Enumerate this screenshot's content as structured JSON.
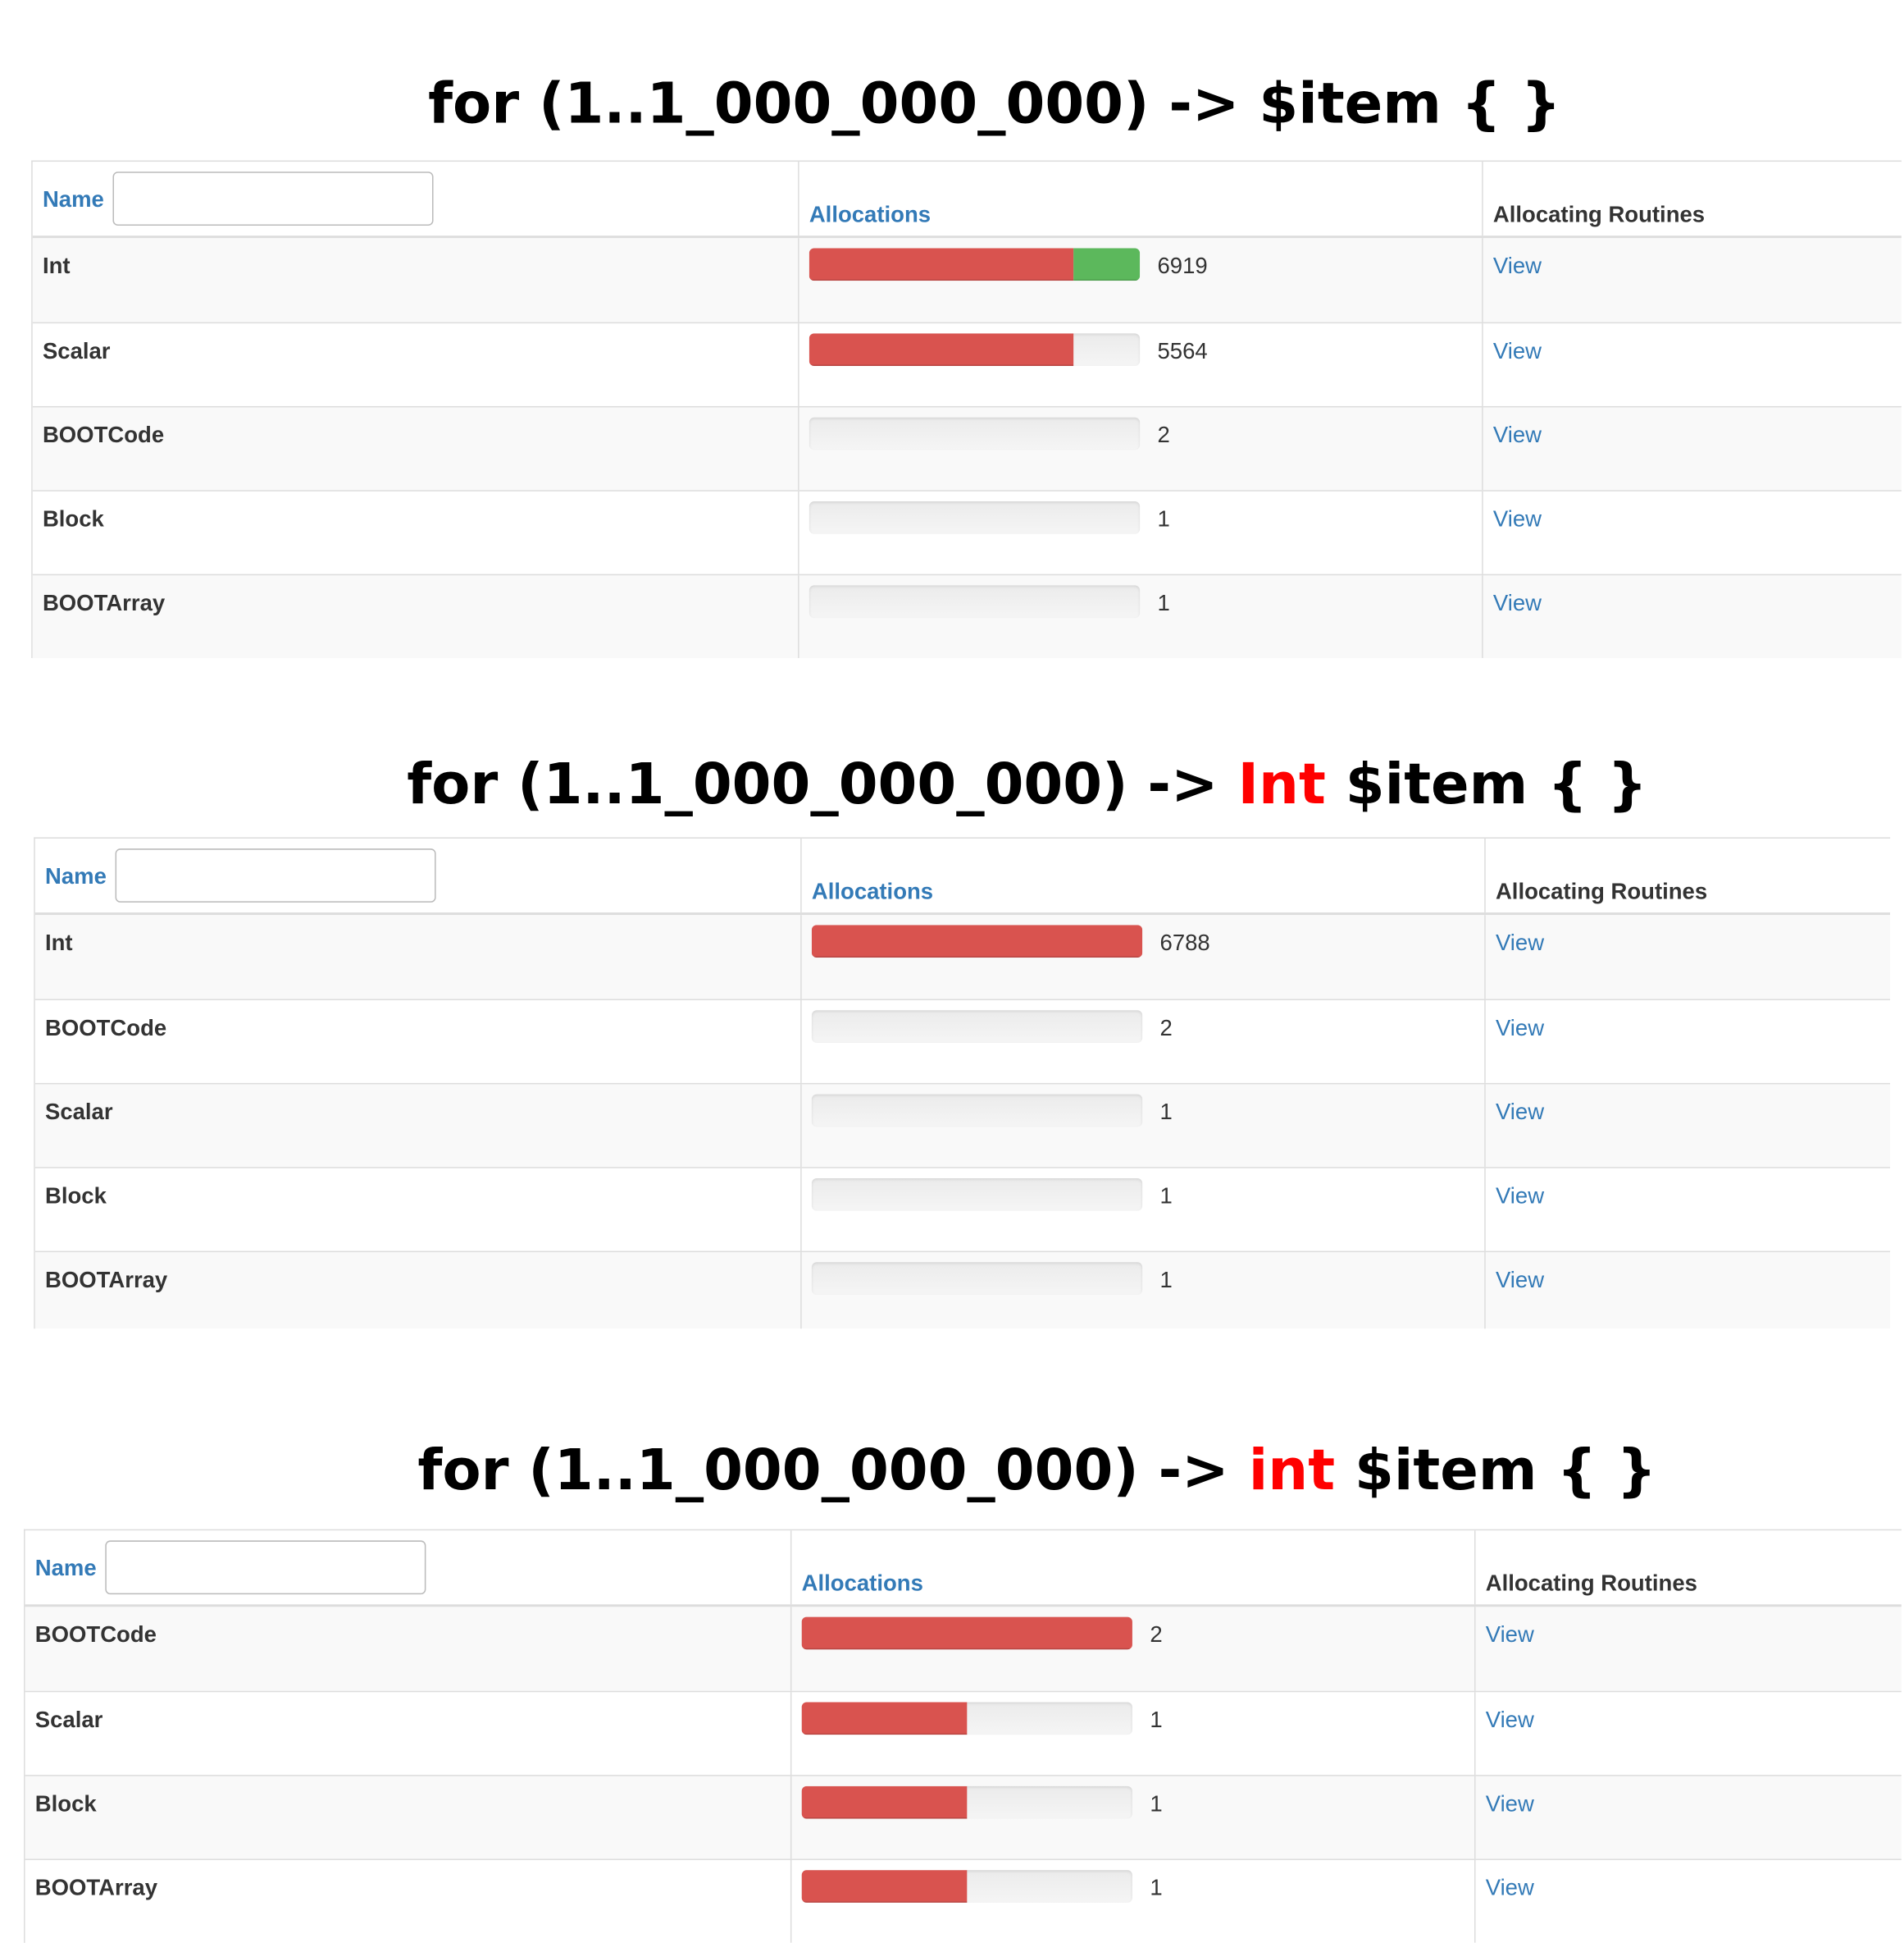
{
  "sections": [
    {
      "title": [
        {
          "text": "for (1..1_000_000_000) -> $item { }"
        }
      ],
      "table": {
        "headers": [
          "Name",
          "Allocations",
          "Allocating Routines"
        ],
        "rows": [
          {
            "name": "Int",
            "bar": [
              {
                "percent": 80,
                "color": "#d9534f"
              },
              {
                "percent": 20,
                "color": "#5cb85c"
              }
            ],
            "count": "6919",
            "link": "View"
          },
          {
            "name": "Scalar",
            "bar": [
              {
                "percent": 80,
                "color": "#d9534f"
              }
            ],
            "count": "5564",
            "link": "View"
          },
          {
            "name": "BOOTCode",
            "bar": [],
            "count": "2",
            "link": "View"
          },
          {
            "name": "Block",
            "bar": [],
            "count": "1",
            "link": "View"
          },
          {
            "name": "BOOTArray",
            "bar": [],
            "count": "1",
            "link": "View"
          }
        ]
      }
    },
    {
      "title": [
        {
          "text": "for (1..1_000_000_000) -> "
        },
        {
          "text": "Int",
          "color": "#ff0000"
        },
        {
          "text": " $item { }"
        }
      ],
      "table": {
        "headers": [
          "Name",
          "Allocations",
          "Allocating Routines"
        ],
        "rows": [
          {
            "name": "Int",
            "bar": [
              {
                "percent": 100,
                "color": "#d9534f"
              }
            ],
            "count": "6788",
            "link": "View"
          },
          {
            "name": "BOOTCode",
            "bar": [],
            "count": "2",
            "link": "View"
          },
          {
            "name": "Scalar",
            "bar": [],
            "count": "1",
            "link": "View"
          },
          {
            "name": "Block",
            "bar": [],
            "count": "1",
            "link": "View"
          },
          {
            "name": "BOOTArray",
            "bar": [],
            "count": "1",
            "link": "View"
          }
        ]
      }
    },
    {
      "title": [
        {
          "text": "for (1..1_000_000_000) -> "
        },
        {
          "text": "int",
          "color": "#ff0000"
        },
        {
          "text": " $item { }"
        }
      ],
      "table": {
        "headers": [
          "Name",
          "Allocations",
          "Allocating Routines"
        ],
        "rows": [
          {
            "name": "BOOTCode",
            "bar": [
              {
                "percent": 100,
                "color": "#d9534f"
              }
            ],
            "count": "2",
            "link": "View"
          },
          {
            "name": "Scalar",
            "bar": [
              {
                "percent": 50,
                "color": "#d9534f"
              }
            ],
            "count": "1",
            "link": "View"
          },
          {
            "name": "Block",
            "bar": [
              {
                "percent": 50,
                "color": "#d9534f"
              }
            ],
            "count": "1",
            "link": "View"
          },
          {
            "name": "BOOTArray",
            "bar": [
              {
                "percent": 50,
                "color": "#d9534f"
              }
            ],
            "count": "1",
            "link": "View"
          }
        ]
      }
    }
  ]
}
